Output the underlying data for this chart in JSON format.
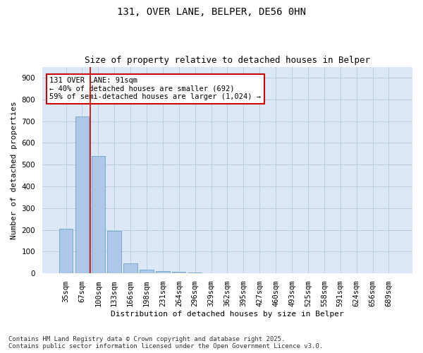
{
  "title_line1": "131, OVER LANE, BELPER, DE56 0HN",
  "title_line2": "Size of property relative to detached houses in Belper",
  "xlabel": "Distribution of detached houses by size in Belper",
  "ylabel": "Number of detached properties",
  "categories": [
    "35sqm",
    "67sqm",
    "100sqm",
    "133sqm",
    "166sqm",
    "198sqm",
    "231sqm",
    "264sqm",
    "296sqm",
    "329sqm",
    "362sqm",
    "395sqm",
    "427sqm",
    "460sqm",
    "493sqm",
    "525sqm",
    "558sqm",
    "591sqm",
    "624sqm",
    "656sqm",
    "689sqm"
  ],
  "values": [
    205,
    720,
    540,
    195,
    45,
    17,
    12,
    8,
    3,
    0,
    0,
    0,
    0,
    0,
    0,
    0,
    0,
    0,
    0,
    0,
    0
  ],
  "bar_color": "#aec6e8",
  "bar_edge_color": "#5a9abf",
  "vline_x_index": 1.5,
  "annotation_text": "131 OVER LANE: 91sqm\n← 40% of detached houses are smaller (692)\n59% of semi-detached houses are larger (1,024) →",
  "annotation_box_color": "#ffffff",
  "annotation_box_edge_color": "#cc0000",
  "vline_color": "#cc0000",
  "ylim": [
    0,
    950
  ],
  "yticks": [
    0,
    100,
    200,
    300,
    400,
    500,
    600,
    700,
    800,
    900
  ],
  "background_color": "#ffffff",
  "plot_bg_color": "#dce8f5",
  "grid_color": "#b8cfe0",
  "footer_text": "Contains HM Land Registry data © Crown copyright and database right 2025.\nContains public sector information licensed under the Open Government Licence v3.0.",
  "title_fontsize": 10,
  "subtitle_fontsize": 9,
  "axis_label_fontsize": 8,
  "tick_fontsize": 7.5,
  "annotation_fontsize": 7.5,
  "footer_fontsize": 6.5
}
